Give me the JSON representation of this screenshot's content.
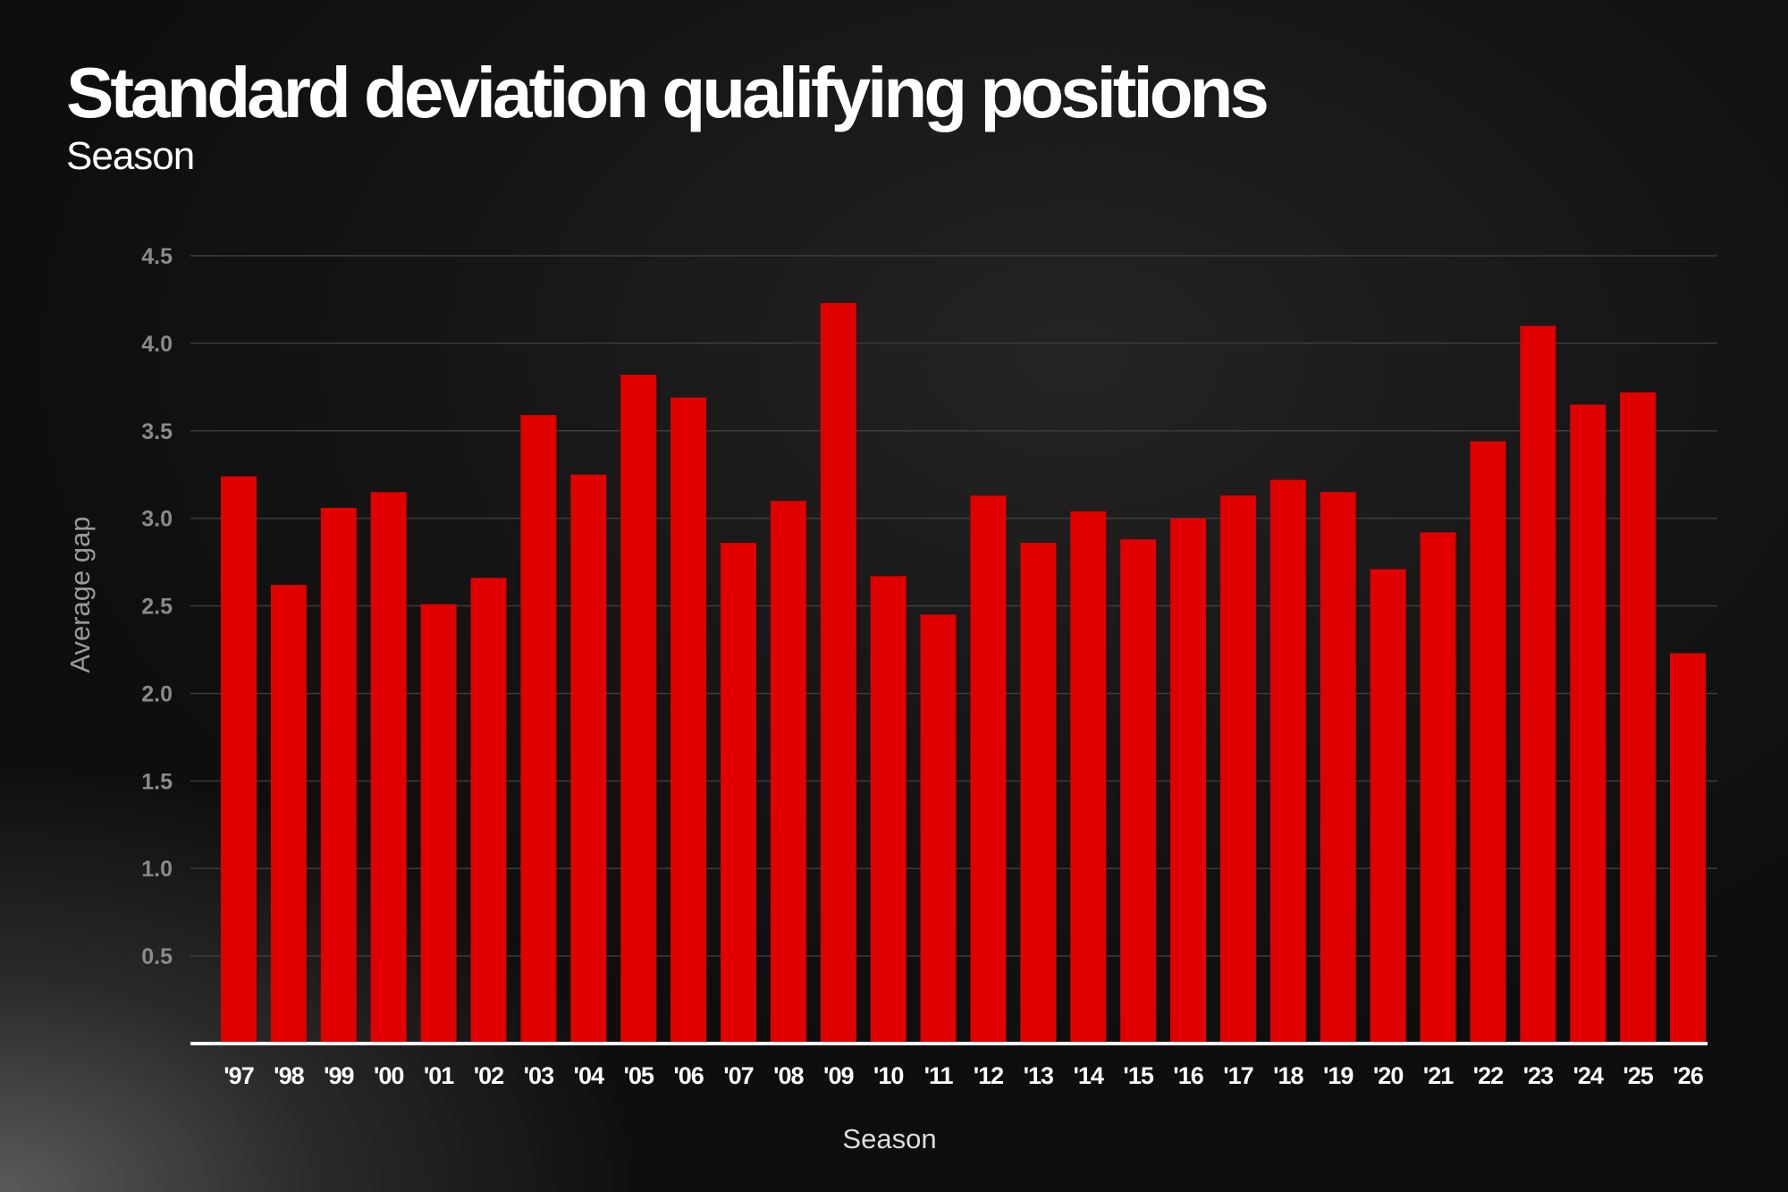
{
  "title": "Standard deviation qualifying positions",
  "subtitle": "Season",
  "chart_data": {
    "type": "bar",
    "title": "Standard deviation qualifying positions",
    "subtitle": "Season",
    "xlabel": "Season",
    "ylabel": "Average gap",
    "ylim": [
      0,
      4.5
    ],
    "yticks": [
      "0.5",
      "1.0",
      "1.5",
      "2.0",
      "2.5",
      "3.0",
      "3.5",
      "4.0",
      "4.5"
    ],
    "grid": true,
    "categories": [
      "'97",
      "'98",
      "'99",
      "'00",
      "'01",
      "'02",
      "'03",
      "'04",
      "'05",
      "'06",
      "'07",
      "'08",
      "'09",
      "'10",
      "'11",
      "'12",
      "'13",
      "'14",
      "'15",
      "'16",
      "'17",
      "'18",
      "'19",
      "'20",
      "'21",
      "'22",
      "'23",
      "'24",
      "'25",
      "'26"
    ],
    "values": [
      3.24,
      2.62,
      3.06,
      3.15,
      2.51,
      2.66,
      3.59,
      3.25,
      3.82,
      3.69,
      2.86,
      3.1,
      4.23,
      2.67,
      2.45,
      3.13,
      2.86,
      3.04,
      2.88,
      3.0,
      3.13,
      3.22,
      3.15,
      2.71,
      2.92,
      3.44,
      4.1,
      3.65,
      3.72,
      2.23
    ],
    "bar_color": "#e00000",
    "axis_color": "#ffffff",
    "grid_color": "#3c3c3c"
  }
}
